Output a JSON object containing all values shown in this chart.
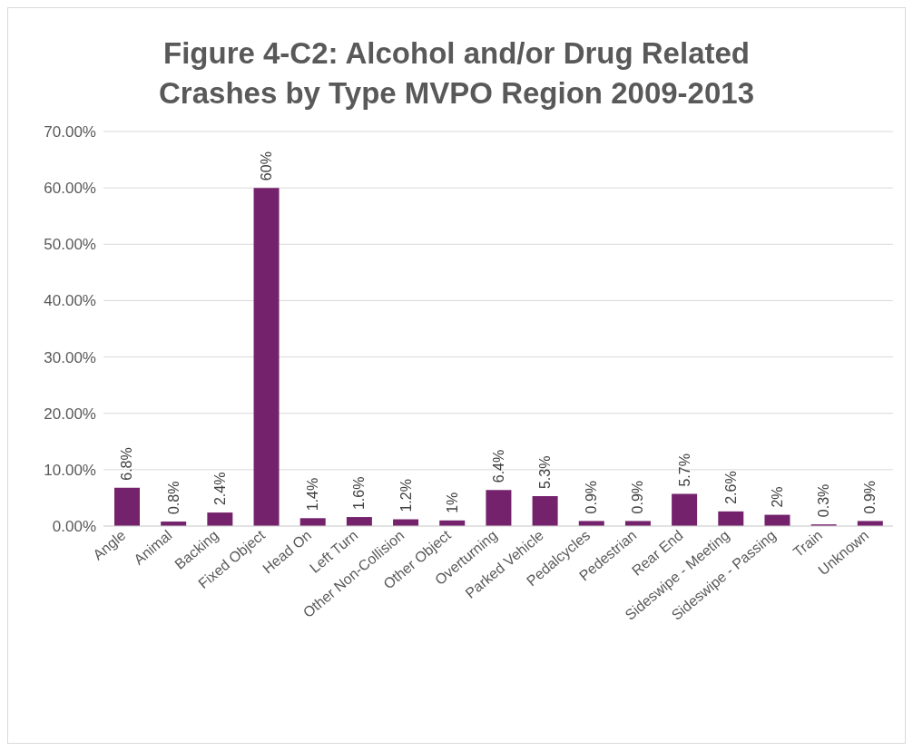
{
  "chart_data": {
    "type": "bar",
    "title": "Figure 4-C2: Alcohol and/or Drug Related Crashes by Type MVPO Region 2009-2013",
    "categories": [
      "Angle",
      "Animal",
      "Backing",
      "Fixed Object",
      "Head On",
      "Left Turn",
      "Other Non-Collision",
      "Other Object",
      "Overturning",
      "Parked Vehicle",
      "Pedalcycles",
      "Pedestrian",
      "Rear End",
      "Sideswipe - Meeting",
      "Sideswipe - Passing",
      "Train",
      "Unknown"
    ],
    "values": [
      6.8,
      0.8,
      2.4,
      60,
      1.4,
      1.6,
      1.2,
      1,
      6.4,
      5.3,
      0.9,
      0.9,
      5.7,
      2.6,
      2,
      0.3,
      0.9
    ],
    "value_labels": [
      "6.8%",
      "0.8%",
      "2.4%",
      "60%",
      "1.4%",
      "1.6%",
      "1.2%",
      "1%",
      "6.4%",
      "5.3%",
      "0.9%",
      "0.9%",
      "5.7%",
      "2.6%",
      "2%",
      "0.3%",
      "0.9%"
    ],
    "color": "#74226c",
    "ylim": [
      0,
      70
    ],
    "yticks": [
      {
        "value": 0,
        "label": "0.00%"
      },
      {
        "value": 10,
        "label": "10.00%"
      },
      {
        "value": 20,
        "label": "20.00%"
      },
      {
        "value": 30,
        "label": "30.00%"
      },
      {
        "value": 40,
        "label": "40.00%"
      },
      {
        "value": 50,
        "label": "50.00%"
      },
      {
        "value": 60,
        "label": "60.00%"
      },
      {
        "value": 70,
        "label": "70.00%"
      }
    ],
    "grid": "y",
    "legend": false
  }
}
